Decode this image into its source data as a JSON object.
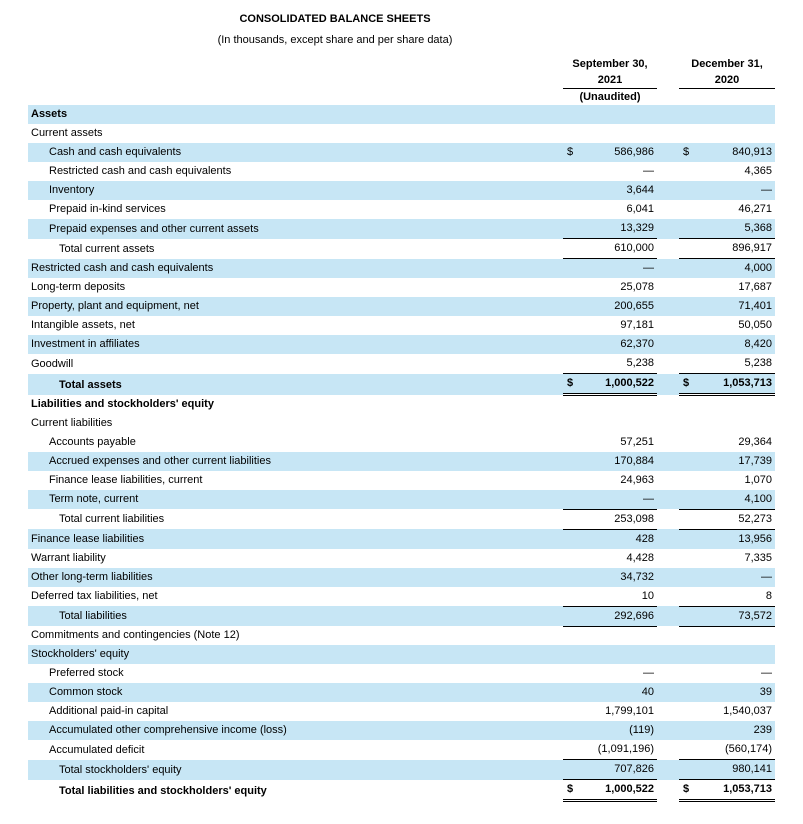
{
  "document": {
    "title": "CONSOLIDATED BALANCE SHEETS",
    "subtitle": "(In thousands, except share and per share data)"
  },
  "colors": {
    "row_shading": "#c7e6f5",
    "text": "#000000"
  },
  "table": {
    "columns": [
      {
        "title": "September 30,",
        "year": "2021",
        "note": "(Unaudited)"
      },
      {
        "title": "December 31,",
        "year": "2020",
        "note": ""
      }
    ],
    "rows": [
      {
        "label": "Assets",
        "indent": 0,
        "bold": true,
        "shaded": true,
        "d1": "",
        "v1": "",
        "d2": "",
        "v2": "",
        "border": "none"
      },
      {
        "label": "Current assets",
        "indent": 0,
        "bold": false,
        "shaded": false,
        "d1": "",
        "v1": "",
        "d2": "",
        "v2": "",
        "border": "none"
      },
      {
        "label": "Cash and cash equivalents",
        "indent": 1,
        "bold": false,
        "shaded": true,
        "d1": "$",
        "v1": "586,986",
        "d2": "$",
        "v2": "840,913",
        "border": "none"
      },
      {
        "label": "Restricted cash and cash equivalents",
        "indent": 1,
        "bold": false,
        "shaded": false,
        "d1": "",
        "v1": "—",
        "d2": "",
        "v2": "4,365",
        "border": "none"
      },
      {
        "label": "Inventory",
        "indent": 1,
        "bold": false,
        "shaded": true,
        "d1": "",
        "v1": "3,644",
        "d2": "",
        "v2": "—",
        "border": "none"
      },
      {
        "label": "Prepaid in-kind services",
        "indent": 1,
        "bold": false,
        "shaded": false,
        "d1": "",
        "v1": "6,041",
        "d2": "",
        "v2": "46,271",
        "border": "none"
      },
      {
        "label": "Prepaid expenses and other current assets",
        "indent": 1,
        "bold": false,
        "shaded": true,
        "d1": "",
        "v1": "13,329",
        "d2": "",
        "v2": "5,368",
        "border": "single"
      },
      {
        "label": "Total current assets",
        "indent": 2,
        "bold": false,
        "shaded": false,
        "d1": "",
        "v1": "610,000",
        "d2": "",
        "v2": "896,917",
        "border": "single"
      },
      {
        "label": "Restricted cash and cash equivalents",
        "indent": 0,
        "bold": false,
        "shaded": true,
        "d1": "",
        "v1": "—",
        "d2": "",
        "v2": "4,000",
        "border": "none"
      },
      {
        "label": "Long-term deposits",
        "indent": 0,
        "bold": false,
        "shaded": false,
        "d1": "",
        "v1": "25,078",
        "d2": "",
        "v2": "17,687",
        "border": "none"
      },
      {
        "label": "Property, plant and equipment, net",
        "indent": 0,
        "bold": false,
        "shaded": true,
        "d1": "",
        "v1": "200,655",
        "d2": "",
        "v2": "71,401",
        "border": "none"
      },
      {
        "label": "Intangible assets, net",
        "indent": 0,
        "bold": false,
        "shaded": false,
        "d1": "",
        "v1": "97,181",
        "d2": "",
        "v2": "50,050",
        "border": "none"
      },
      {
        "label": "Investment in affiliates",
        "indent": 0,
        "bold": false,
        "shaded": true,
        "d1": "",
        "v1": "62,370",
        "d2": "",
        "v2": "8,420",
        "border": "none"
      },
      {
        "label": "Goodwill",
        "indent": 0,
        "bold": false,
        "shaded": false,
        "d1": "",
        "v1": "5,238",
        "d2": "",
        "v2": "5,238",
        "border": "single"
      },
      {
        "label": "Total assets",
        "indent": 2,
        "bold": true,
        "shaded": true,
        "d1": "$",
        "v1": "1,000,522",
        "d2": "$",
        "v2": "1,053,713",
        "border": "double"
      },
      {
        "label": "Liabilities and stockholders' equity",
        "indent": 0,
        "bold": true,
        "shaded": false,
        "d1": "",
        "v1": "",
        "d2": "",
        "v2": "",
        "border": "none"
      },
      {
        "label": "Current liabilities",
        "indent": 0,
        "bold": false,
        "shaded": false,
        "d1": "",
        "v1": "",
        "d2": "",
        "v2": "",
        "border": "none"
      },
      {
        "label": "Accounts payable",
        "indent": 1,
        "bold": false,
        "shaded": false,
        "d1": "",
        "v1": "57,251",
        "d2": "",
        "v2": "29,364",
        "border": "none"
      },
      {
        "label": "Accrued expenses and other current liabilities",
        "indent": 1,
        "bold": false,
        "shaded": true,
        "d1": "",
        "v1": "170,884",
        "d2": "",
        "v2": "17,739",
        "border": "none"
      },
      {
        "label": "Finance lease liabilities, current",
        "indent": 1,
        "bold": false,
        "shaded": false,
        "d1": "",
        "v1": "24,963",
        "d2": "",
        "v2": "1,070",
        "border": "none"
      },
      {
        "label": "Term note, current",
        "indent": 1,
        "bold": false,
        "shaded": true,
        "d1": "",
        "v1": "—",
        "d2": "",
        "v2": "4,100",
        "border": "single"
      },
      {
        "label": "Total current liabilities",
        "indent": 2,
        "bold": false,
        "shaded": false,
        "d1": "",
        "v1": "253,098",
        "d2": "",
        "v2": "52,273",
        "border": "single"
      },
      {
        "label": "Finance lease liabilities",
        "indent": 0,
        "bold": false,
        "shaded": true,
        "d1": "",
        "v1": "428",
        "d2": "",
        "v2": "13,956",
        "border": "none"
      },
      {
        "label": "Warrant liability",
        "indent": 0,
        "bold": false,
        "shaded": false,
        "d1": "",
        "v1": "4,428",
        "d2": "",
        "v2": "7,335",
        "border": "none"
      },
      {
        "label": "Other long-term liabilities",
        "indent": 0,
        "bold": false,
        "shaded": true,
        "d1": "",
        "v1": "34,732",
        "d2": "",
        "v2": "—",
        "border": "none"
      },
      {
        "label": "Deferred tax liabilities, net",
        "indent": 0,
        "bold": false,
        "shaded": false,
        "d1": "",
        "v1": "10",
        "d2": "",
        "v2": "8",
        "border": "single"
      },
      {
        "label": "Total liabilities",
        "indent": 2,
        "bold": false,
        "shaded": true,
        "d1": "",
        "v1": "292,696",
        "d2": "",
        "v2": "73,572",
        "border": "single"
      },
      {
        "label": "Commitments and contingencies (Note 12)",
        "indent": 0,
        "bold": false,
        "shaded": false,
        "d1": "",
        "v1": "",
        "d2": "",
        "v2": "",
        "border": "none"
      },
      {
        "label": "Stockholders' equity",
        "indent": 0,
        "bold": false,
        "shaded": true,
        "d1": "",
        "v1": "",
        "d2": "",
        "v2": "",
        "border": "none"
      },
      {
        "label": "Preferred stock",
        "indent": 1,
        "bold": false,
        "shaded": false,
        "d1": "",
        "v1": "—",
        "d2": "",
        "v2": "—",
        "border": "none"
      },
      {
        "label": "Common stock",
        "indent": 1,
        "bold": false,
        "shaded": true,
        "d1": "",
        "v1": "40",
        "d2": "",
        "v2": "39",
        "border": "none"
      },
      {
        "label": "Additional paid-in capital",
        "indent": 1,
        "bold": false,
        "shaded": false,
        "d1": "",
        "v1": "1,799,101",
        "d2": "",
        "v2": "1,540,037",
        "border": "none"
      },
      {
        "label": "Accumulated other comprehensive income (loss)",
        "indent": 1,
        "bold": false,
        "shaded": true,
        "d1": "",
        "v1": "(119)",
        "d2": "",
        "v2": "239",
        "border": "none"
      },
      {
        "label": "Accumulated deficit",
        "indent": 1,
        "bold": false,
        "shaded": false,
        "d1": "",
        "v1": "(1,091,196)",
        "d2": "",
        "v2": "(560,174)",
        "border": "single"
      },
      {
        "label": "Total stockholders' equity",
        "indent": 2,
        "bold": false,
        "shaded": true,
        "d1": "",
        "v1": "707,826",
        "d2": "",
        "v2": "980,141",
        "border": "single"
      },
      {
        "label": "Total liabilities and stockholders' equity",
        "indent": 2,
        "bold": true,
        "shaded": false,
        "d1": "$",
        "v1": "1,000,522",
        "d2": "$",
        "v2": "1,053,713",
        "border": "double"
      }
    ]
  }
}
